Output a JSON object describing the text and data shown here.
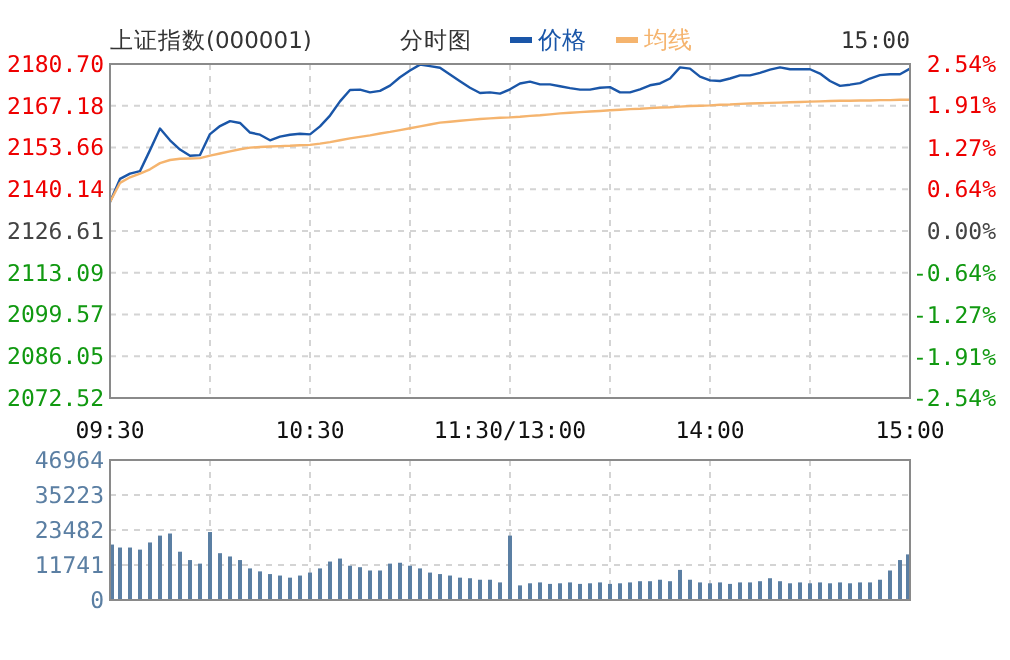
{
  "chart_data": [
    {
      "type": "line",
      "title": "上证指数(000001)",
      "subtitle": "分时图",
      "annotations": [
        "15:00"
      ],
      "legend": "top",
      "grid": true,
      "categories": [
        "09:30",
        null,
        null,
        null,
        null,
        null,
        null,
        null,
        null,
        null,
        null,
        null,
        null,
        null,
        null,
        null,
        null,
        null,
        null,
        null,
        "10:30",
        null,
        null,
        null,
        null,
        null,
        null,
        null,
        null,
        null,
        null,
        null,
        null,
        null,
        null,
        null,
        null,
        null,
        null,
        null,
        "11:30/13:00",
        null,
        null,
        null,
        null,
        null,
        null,
        null,
        null,
        null,
        null,
        null,
        null,
        null,
        null,
        null,
        null,
        null,
        null,
        null,
        "14:00",
        null,
        null,
        null,
        null,
        null,
        null,
        null,
        null,
        null,
        null,
        null,
        null,
        null,
        null,
        null,
        null,
        null,
        null,
        null,
        "15:00"
      ],
      "series": [
        {
          "name": "价格",
          "color": "#1a56a8",
          "values": [
            2136.0,
            2143.5,
            2145.2,
            2146.0,
            2152.8,
            2159.8,
            2156.0,
            2153.0,
            2151.0,
            2151.2,
            2158.0,
            2160.6,
            2162.2,
            2161.6,
            2158.5,
            2157.8,
            2156.0,
            2157.2,
            2157.8,
            2158.1,
            2157.9,
            2160.5,
            2164.0,
            2168.6,
            2172.3,
            2172.4,
            2171.5,
            2172.0,
            2173.7,
            2176.4,
            2178.6,
            2180.5,
            2180.0,
            2179.5,
            2177.3,
            2175.1,
            2173.0,
            2171.3,
            2171.5,
            2171.1,
            2172.5,
            2174.4,
            2175.0,
            2174.1,
            2174.1,
            2173.5,
            2172.9,
            2172.4,
            2172.4,
            2173.0,
            2173.2,
            2171.5,
            2171.5,
            2172.5,
            2173.8,
            2174.4,
            2176.0,
            2179.6,
            2179.2,
            2176.6,
            2175.4,
            2175.2,
            2176.0,
            2177.0,
            2177.0,
            2177.8,
            2178.9,
            2179.6,
            2179.0,
            2179.0,
            2179.0,
            2177.6,
            2175.2,
            2173.6,
            2174.0,
            2174.5,
            2176.0,
            2177.1,
            2177.4,
            2177.4,
            2179.2
          ]
        },
        {
          "name": "均线",
          "color": "#f5b46e",
          "values": [
            2136.0,
            2142.2,
            2144.0,
            2145.2,
            2146.6,
            2148.6,
            2149.6,
            2150.0,
            2150.1,
            2150.2,
            2151.0,
            2151.7,
            2152.4,
            2153.1,
            2153.6,
            2153.8,
            2154.0,
            2154.1,
            2154.2,
            2154.4,
            2154.5,
            2154.9,
            2155.4,
            2156.0,
            2156.6,
            2157.1,
            2157.6,
            2158.2,
            2158.7,
            2159.3,
            2159.9,
            2160.5,
            2161.1,
            2161.7,
            2162.0,
            2162.3,
            2162.6,
            2162.9,
            2163.1,
            2163.3,
            2163.4,
            2163.6,
            2163.9,
            2164.1,
            2164.4,
            2164.7,
            2164.9,
            2165.1,
            2165.3,
            2165.5,
            2165.7,
            2165.9,
            2166.1,
            2166.2,
            2166.4,
            2166.6,
            2166.7,
            2166.9,
            2167.1,
            2167.2,
            2167.3,
            2167.5,
            2167.6,
            2167.8,
            2167.9,
            2168.0,
            2168.1,
            2168.2,
            2168.3,
            2168.4,
            2168.5,
            2168.6,
            2168.7,
            2168.8,
            2168.8,
            2168.9,
            2168.9,
            2169.0,
            2169.0,
            2169.1,
            2169.1
          ]
        }
      ],
      "ylim": [
        2072.52,
        2180.7
      ],
      "yticks": [
        {
          "value": 2072.52,
          "label": "2072.52"
        },
        {
          "value": 2086.05,
          "label": "2086.05"
        },
        {
          "value": 2099.57,
          "label": "2099.57"
        },
        {
          "value": 2113.09,
          "label": "2113.09"
        },
        {
          "value": 2126.61,
          "label": "2126.61"
        },
        {
          "value": 2140.14,
          "label": "2140.14"
        },
        {
          "value": 2153.66,
          "label": "2153.66"
        },
        {
          "value": 2167.18,
          "label": "2167.18"
        },
        {
          "value": 2180.7,
          "label": "2180.70"
        }
      ],
      "y2lim": [
        -2.54,
        2.54
      ],
      "y2ticks": [
        {
          "value": -2.54,
          "label": "-2.54%"
        },
        {
          "value": -1.91,
          "label": "-1.91%"
        },
        {
          "value": -1.27,
          "label": "-1.27%"
        },
        {
          "value": -0.64,
          "label": "-0.64%"
        },
        {
          "value": 0,
          "label": "0.00%"
        },
        {
          "value": 0.64,
          "label": "0.64%"
        },
        {
          "value": 1.27,
          "label": "1.27%"
        },
        {
          "value": 1.91,
          "label": "1.91%"
        },
        {
          "value": 2.54,
          "label": "2.54%"
        }
      ]
    },
    {
      "type": "bar",
      "color": "#5b7fa3",
      "grid": true,
      "tick_labels": "y",
      "categories": [
        null,
        null,
        null,
        null,
        null,
        null,
        null,
        null,
        null,
        null,
        null,
        null,
        null,
        null,
        null,
        null,
        null,
        null,
        null,
        null,
        null,
        null,
        null,
        null,
        null,
        null,
        null,
        null,
        null,
        null,
        null,
        null,
        null,
        null,
        null,
        null,
        null,
        null,
        null,
        null,
        null,
        null,
        null,
        null,
        null,
        null,
        null,
        null,
        null,
        null,
        null,
        null,
        null,
        null,
        null,
        null,
        null,
        null,
        null,
        null,
        null,
        null,
        null,
        null,
        null,
        null,
        null,
        null,
        null,
        null,
        null,
        null,
        null,
        null,
        null,
        null,
        null,
        null,
        null,
        null,
        null
      ],
      "values": [
        18600,
        17600,
        17600,
        16900,
        19300,
        21600,
        22300,
        16200,
        13400,
        12200,
        22800,
        15700,
        14600,
        13400,
        10600,
        9600,
        8700,
        8200,
        7500,
        8200,
        9200,
        10600,
        12900,
        13900,
        11500,
        11000,
        9900,
        9900,
        12200,
        12500,
        11500,
        10600,
        9200,
        8700,
        8200,
        7500,
        7300,
        6800,
        6800,
        5900,
        21600,
        4900,
        5600,
        5900,
        5400,
        5600,
        5900,
        5400,
        5600,
        5900,
        5400,
        5600,
        5900,
        6300,
        6300,
        6800,
        6300,
        10100,
        6800,
        5900,
        5600,
        5900,
        5400,
        5900,
        5900,
        6300,
        7300,
        6300,
        5600,
        5900,
        5600,
        5900,
        5600,
        5900,
        5600,
        5900,
        5900,
        6800,
        9900,
        13400,
        15300
      ],
      "ylim": [
        0,
        46964
      ],
      "yticks": [
        0,
        11741,
        23482,
        35223,
        46964
      ]
    }
  ]
}
